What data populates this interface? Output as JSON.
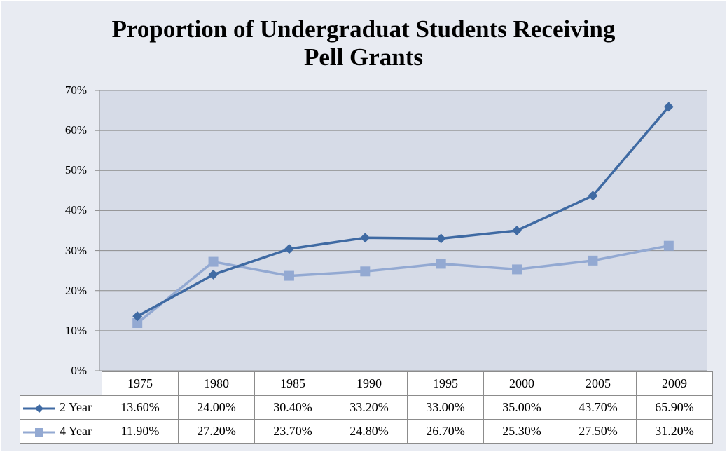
{
  "colors": {
    "two_year": "#3f6aa3",
    "four_year": "#93a9d2",
    "plot_bg": "#d6dbe7",
    "grid": "#8c8c8c"
  },
  "chart_data": {
    "type": "line",
    "title": "Proportion of Undergraduat Students Receiving",
    "title_line2": "Pell Grants",
    "categories": [
      "1975",
      "1980",
      "1985",
      "1990",
      "1995",
      "2000",
      "2005",
      "2009"
    ],
    "series": [
      {
        "name": "2 Year",
        "values": [
          0.136,
          0.24,
          0.304,
          0.332,
          0.33,
          0.35,
          0.437,
          0.659
        ],
        "labels": [
          "13.60%",
          "24.00%",
          "30.40%",
          "33.20%",
          "33.00%",
          "35.00%",
          "43.70%",
          "65.90%"
        ],
        "marker": "diamond"
      },
      {
        "name": "4 Year",
        "values": [
          0.119,
          0.272,
          0.237,
          0.248,
          0.267,
          0.253,
          0.275,
          0.312
        ],
        "labels": [
          "11.90%",
          "27.20%",
          "23.70%",
          "24.80%",
          "26.70%",
          "25.30%",
          "27.50%",
          "31.20%"
        ],
        "marker": "square"
      }
    ],
    "yticks": [
      "0%",
      "10%",
      "20%",
      "30%",
      "40%",
      "50%",
      "60%",
      "70%"
    ],
    "ylim": [
      0,
      0.7
    ],
    "grid": true,
    "legend": "data-table"
  }
}
